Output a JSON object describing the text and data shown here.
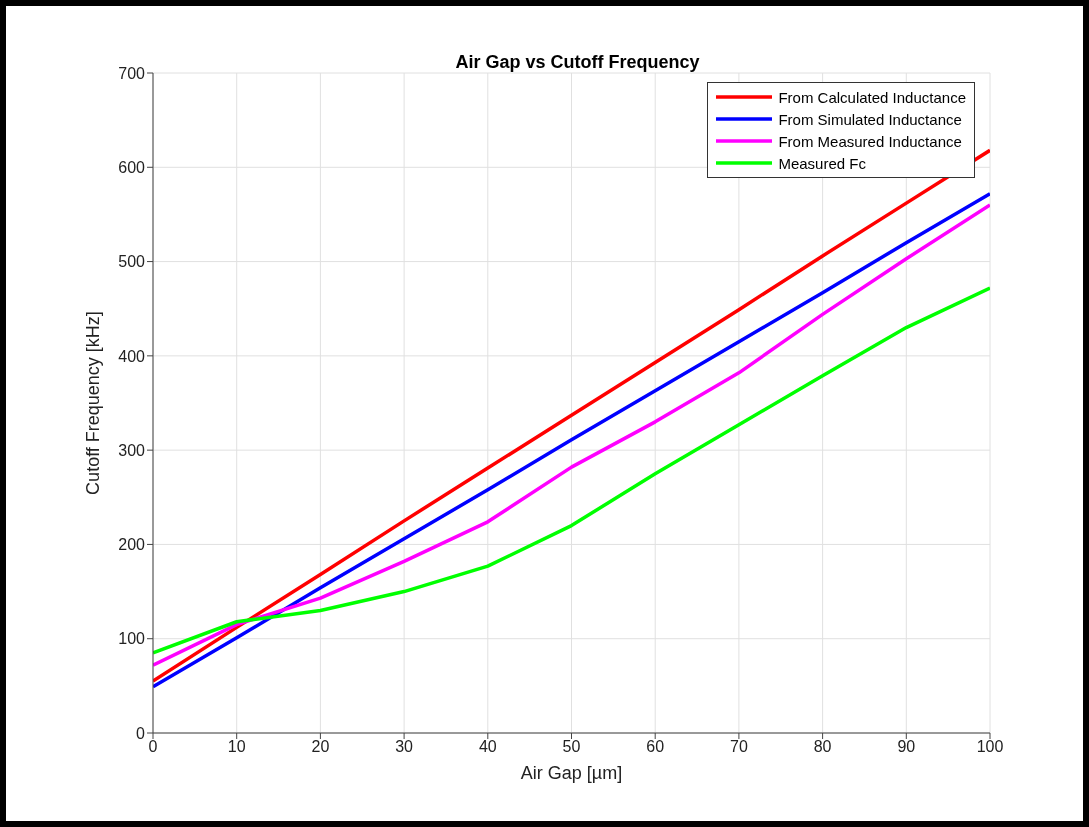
{
  "chart_data": {
    "type": "line",
    "title": "Air Gap vs Cutoff Frequency",
    "xlabel": "Air Gap [µm]",
    "ylabel": "Cutoff Frequency [kHz]",
    "x": [
      0,
      10,
      20,
      30,
      40,
      50,
      60,
      70,
      80,
      90,
      100
    ],
    "series": [
      {
        "name": "From Calculated Inductance",
        "color": "#ff0000",
        "values": [
          55,
          112,
          168,
          225,
          281,
          337,
          393,
          449,
          506,
          562,
          618
        ]
      },
      {
        "name": "From Simulated Inductance",
        "color": "#0000ff",
        "values": [
          49,
          101,
          154,
          206,
          258,
          311,
          363,
          415,
          467,
          520,
          572
        ]
      },
      {
        "name": "From Measured Inductance",
        "color": "#ff00ff",
        "values": [
          72,
          115,
          143,
          182,
          224,
          282,
          330,
          382,
          444,
          503,
          560
        ]
      },
      {
        "name": "Measured Fc",
        "color": "#00ff00",
        "values": [
          85,
          118,
          130,
          150,
          177,
          220,
          275,
          327,
          379,
          430,
          472
        ]
      }
    ],
    "xlim": [
      0,
      100
    ],
    "xticks": [
      0,
      10,
      20,
      30,
      40,
      50,
      60,
      70,
      80,
      90,
      100
    ],
    "ylim": [
      0,
      700
    ],
    "yticks": [
      0,
      100,
      200,
      300,
      400,
      500,
      600,
      700
    ],
    "grid": true,
    "legend": "top right",
    "marker": "none",
    "line_style": "solid"
  }
}
